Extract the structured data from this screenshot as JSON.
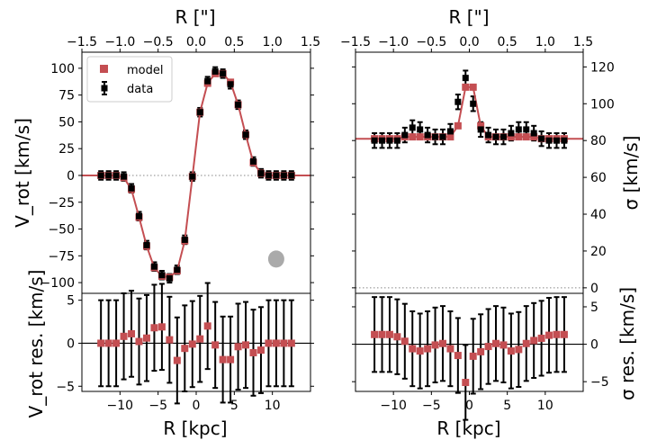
{
  "colors": {
    "model": "#c44e52",
    "data": "#000000",
    "zero_line": "#888888",
    "beam": "#aaaaaa"
  },
  "legend": {
    "model_label": "model",
    "data_label": "data"
  },
  "chart_data": [
    {
      "name": "rotation-panel",
      "type": "line",
      "xlabel": "",
      "ylabel": "V_rot [km/s]",
      "top_xlabel": "R [\"]",
      "xlim": [
        -15,
        15
      ],
      "ylim": [
        -110,
        115
      ],
      "yticks": [
        -100,
        -75,
        -50,
        -25,
        0,
        25,
        50,
        75,
        100
      ],
      "top_xlim": [
        -1.5,
        1.5
      ],
      "top_xticks": [
        -1.5,
        -1.0,
        -0.5,
        0.0,
        0.5,
        1.0,
        1.5
      ],
      "x": [
        -12.5,
        -11.5,
        -10.5,
        -9.5,
        -8.5,
        -7.5,
        -6.5,
        -5.5,
        -4.5,
        -3.5,
        -2.5,
        -1.5,
        -0.5,
        0.5,
        1.5,
        2.5,
        3.5,
        4.5,
        5.5,
        6.5,
        7.5,
        8.5,
        9.5,
        10.5,
        11.5,
        12.5
      ],
      "model": [
        0,
        0,
        0,
        -2,
        -13,
        -39,
        -66,
        -86,
        -94,
        -95,
        -89,
        -61,
        -1,
        59,
        86,
        95,
        95,
        87,
        66,
        38,
        12,
        2,
        0,
        0,
        0,
        0
      ],
      "data": [
        0,
        0,
        0,
        -1,
        -12,
        -38,
        -65,
        -85,
        -93,
        -96,
        -88,
        -60,
        -1,
        59,
        88,
        97,
        95,
        85,
        66,
        38,
        13,
        2,
        0,
        0,
        0,
        0
      ],
      "data_err": [
        4,
        4,
        4,
        4,
        4,
        4,
        4,
        4,
        4,
        4,
        4,
        4,
        4,
        4,
        4,
        4,
        4,
        4,
        4,
        4,
        4,
        4,
        4,
        4,
        4,
        4
      ],
      "beam": {
        "x": 10.5,
        "y": -78
      }
    },
    {
      "name": "dispersion-panel",
      "type": "line",
      "xlabel": "",
      "ylabel": "σ [km/s]",
      "top_xlabel": "R [\"]",
      "xlim": [
        -15,
        15
      ],
      "ylim": [
        -3,
        128
      ],
      "yticks": [
        0,
        20,
        40,
        60,
        80,
        100,
        120
      ],
      "top_xlim": [
        -1.5,
        1.5
      ],
      "top_xticks": [
        -1.5,
        -1.0,
        -0.5,
        0.0,
        0.5,
        1.0,
        1.5
      ],
      "x": [
        -12.5,
        -11.5,
        -10.5,
        -9.5,
        -8.5,
        -7.5,
        -6.5,
        -5.5,
        -4.5,
        -3.5,
        -2.5,
        -1.5,
        -0.5,
        0.5,
        1.5,
        2.5,
        3.5,
        4.5,
        5.5,
        6.5,
        7.5,
        8.5,
        9.5,
        10.5,
        11.5,
        12.5
      ],
      "model": [
        81,
        81,
        81,
        81,
        82,
        82,
        82,
        82,
        82,
        82,
        82,
        88,
        109,
        109,
        88,
        82,
        82,
        82,
        82,
        82,
        82,
        82,
        81,
        81,
        81,
        81
      ],
      "data": [
        80,
        80,
        80,
        80,
        83,
        87,
        86,
        83,
        82,
        82,
        85,
        101,
        114,
        100,
        86,
        83,
        82,
        82,
        84,
        86,
        86,
        84,
        81,
        80,
        80,
        80
      ],
      "data_err": [
        4,
        4,
        4,
        4,
        4,
        4,
        4,
        4,
        4,
        4,
        4,
        4,
        4,
        4,
        4,
        4,
        4,
        4,
        4,
        4,
        4,
        4,
        4,
        4,
        4,
        4
      ]
    },
    {
      "name": "rotation-residual-panel",
      "type": "scatter",
      "xlabel": "R [kpc]",
      "ylabel": "V_rot res. [km/s]",
      "xlim": [
        -15,
        15
      ],
      "ylim": [
        -5.6,
        5.8
      ],
      "yticks": [
        -5,
        0,
        5
      ],
      "xticks": [
        -10,
        -5,
        0,
        5,
        10
      ],
      "x": [
        -12.5,
        -11.5,
        -10.5,
        -9.5,
        -8.5,
        -7.5,
        -6.5,
        -5.5,
        -4.5,
        -3.5,
        -2.5,
        -1.5,
        -0.5,
        0.5,
        1.5,
        2.5,
        3.5,
        4.5,
        5.5,
        6.5,
        7.5,
        8.5,
        9.5,
        10.5,
        11.5,
        12.5
      ],
      "values": [
        0,
        0,
        0,
        0.8,
        1.1,
        0.2,
        0.6,
        1.8,
        1.9,
        0.4,
        -2.0,
        -0.6,
        -0.1,
        0.5,
        2.0,
        -0.2,
        -1.9,
        -1.9,
        -0.4,
        -0.2,
        -1.1,
        -0.8,
        0,
        0,
        0,
        0
      ],
      "err": [
        5,
        5,
        5,
        5,
        5,
        5,
        5,
        5,
        5,
        5,
        5,
        5,
        5,
        5,
        5,
        5,
        5,
        5,
        5,
        5,
        5,
        5,
        5,
        5,
        5,
        5
      ]
    },
    {
      "name": "dispersion-residual-panel",
      "type": "scatter",
      "xlabel": "R [kpc]",
      "ylabel": "σ res. [km/s]",
      "xlim": [
        -15,
        15
      ],
      "ylim": [
        -6.3,
        6.8
      ],
      "yticks": [
        -5,
        0,
        5
      ],
      "xticks": [
        -10,
        -5,
        0,
        5,
        10
      ],
      "x": [
        -12.5,
        -11.5,
        -10.5,
        -9.5,
        -8.5,
        -7.5,
        -6.5,
        -5.5,
        -4.5,
        -3.5,
        -2.5,
        -1.5,
        -0.5,
        0.5,
        1.5,
        2.5,
        3.5,
        4.5,
        5.5,
        6.5,
        7.5,
        8.5,
        9.5,
        10.5,
        11.5,
        12.5
      ],
      "values": [
        1.3,
        1.3,
        1.3,
        1.0,
        0.4,
        -0.6,
        -0.9,
        -0.6,
        -0.1,
        0.1,
        -0.6,
        -1.5,
        -5.1,
        -1.6,
        -1.0,
        -0.3,
        0.1,
        -0.1,
        -0.9,
        -0.7,
        0.1,
        0.5,
        0.8,
        1.2,
        1.3,
        1.3
      ],
      "err": [
        5,
        5,
        5,
        5,
        5,
        5,
        5,
        5,
        5,
        5,
        5,
        5,
        5,
        5,
        5,
        5,
        5,
        5,
        5,
        5,
        5,
        5,
        5,
        5,
        5,
        5
      ]
    }
  ]
}
